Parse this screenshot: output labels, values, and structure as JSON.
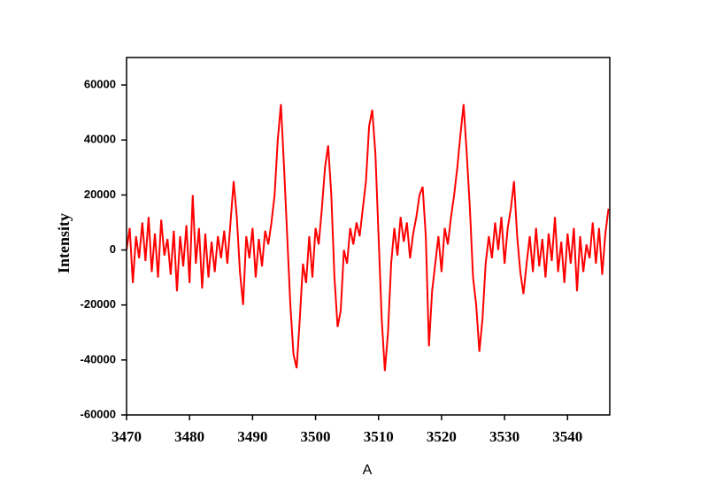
{
  "chart_data": {
    "type": "line",
    "xlabel": "A",
    "ylabel": "Intensity",
    "color": "#ff0000",
    "xlim": [
      3470,
      3546.7
    ],
    "ylim": [
      -60000,
      70000
    ],
    "xticks": [
      3470,
      3480,
      3490,
      3500,
      3510,
      3520,
      3530,
      3540
    ],
    "yticks": [
      -60000,
      -40000,
      -20000,
      0,
      20000,
      40000,
      60000
    ],
    "x": [
      3470,
      3470.5,
      3471,
      3471.5,
      3472,
      3472.5,
      3473,
      3473.5,
      3474,
      3474.5,
      3475,
      3475.5,
      3476,
      3476.5,
      3477,
      3477.5,
      3478,
      3478.5,
      3479,
      3479.5,
      3480,
      3480.5,
      3481,
      3481.5,
      3482,
      3482.5,
      3483,
      3483.5,
      3484,
      3484.5,
      3485,
      3485.5,
      3486,
      3486.5,
      3487,
      3487.5,
      3488,
      3488.5,
      3489,
      3489.5,
      3490,
      3490.5,
      3491,
      3491.5,
      3492,
      3492.5,
      3493,
      3493.5,
      3494,
      3494.5,
      3495,
      3495.5,
      3496,
      3496.5,
      3497,
      3497.5,
      3498,
      3498.5,
      3499,
      3499.5,
      3500,
      3500.5,
      3501,
      3501.5,
      3502,
      3502.5,
      3503,
      3503.5,
      3504,
      3504.5,
      3505,
      3505.5,
      3506,
      3506.5,
      3507,
      3507.5,
      3508,
      3508.5,
      3509,
      3509.5,
      3510,
      3510.5,
      3511,
      3511.5,
      3512,
      3512.5,
      3513,
      3513.5,
      3514,
      3514.5,
      3515,
      3515.5,
      3516,
      3516.5,
      3517,
      3517.5,
      3518,
      3518.5,
      3519,
      3519.5,
      3520,
      3520.5,
      3521,
      3521.5,
      3522,
      3522.5,
      3523,
      3523.5,
      3524,
      3524.5,
      3525,
      3525.5,
      3526,
      3526.5,
      3527,
      3527.5,
      3528,
      3528.5,
      3529,
      3529.5,
      3530,
      3530.5,
      3531,
      3531.5,
      3532,
      3532.5,
      3533,
      3533.5,
      3534,
      3534.5,
      3535,
      3535.5,
      3536,
      3536.5,
      3537,
      3537.5,
      3538,
      3538.5,
      3539,
      3539.5,
      3540,
      3540.5,
      3541,
      3541.5,
      3542,
      3542.5,
      3543,
      3543.5,
      3544,
      3544.5,
      3545,
      3545.5,
      3546,
      3546.5
    ],
    "values": [
      0,
      8000,
      -12000,
      5000,
      -3000,
      10000,
      -4000,
      12000,
      -8000,
      6000,
      -10000,
      11000,
      -2000,
      4000,
      -9000,
      7000,
      -15000,
      5000,
      -6000,
      9000,
      -12000,
      20000,
      -5000,
      8000,
      -14000,
      6000,
      -10000,
      3000,
      -8000,
      5000,
      -3000,
      7000,
      -5000,
      10000,
      25000,
      12000,
      -8000,
      -20000,
      5000,
      -3000,
      8000,
      -10000,
      4000,
      -6000,
      7000,
      2000,
      10000,
      20000,
      40000,
      53000,
      30000,
      5000,
      -20000,
      -38000,
      -43000,
      -25000,
      -5000,
      -12000,
      5000,
      -10000,
      8000,
      2000,
      15000,
      30000,
      38000,
      20000,
      -10000,
      -28000,
      -22000,
      0,
      -5000,
      8000,
      2000,
      10000,
      5000,
      15000,
      25000,
      45000,
      51000,
      35000,
      5000,
      -25000,
      -44000,
      -30000,
      -5000,
      8000,
      -2000,
      12000,
      3000,
      10000,
      -3000,
      6000,
      12000,
      20000,
      23000,
      5000,
      -35000,
      -15000,
      -5000,
      5000,
      -8000,
      8000,
      2000,
      12000,
      20000,
      30000,
      42000,
      53000,
      35000,
      15000,
      -10000,
      -20000,
      -37000,
      -25000,
      -5000,
      5000,
      -3000,
      10000,
      0,
      12000,
      -5000,
      8000,
      15000,
      25000,
      5000,
      -8000,
      -16000,
      -5000,
      5000,
      -8000,
      8000,
      -6000,
      4000,
      -10000,
      6000,
      -4000,
      12000,
      -8000,
      3000,
      -12000,
      6000,
      -5000,
      8000,
      -15000,
      5000,
      -8000,
      2000,
      -3000,
      10000,
      -5000,
      8000,
      -9000,
      6000,
      15000
    ]
  }
}
